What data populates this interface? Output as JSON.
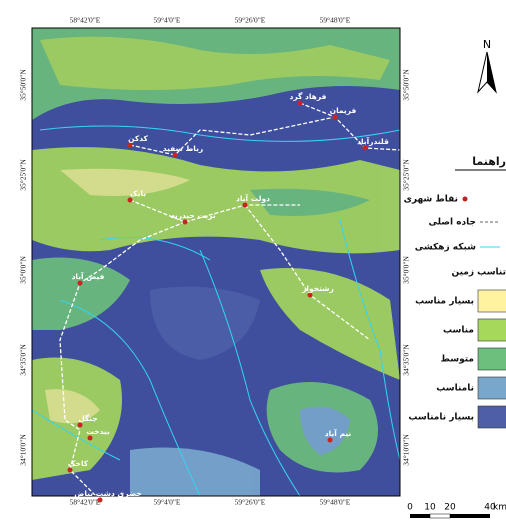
{
  "map": {
    "lon_labels": [
      "58°42'0\"E",
      "59°4'0\"E",
      "59°26'0\"E",
      "59°48'0\"E"
    ],
    "lat_labels": [
      "35°50'0\"N",
      "35°25'0\"N",
      "35°0'0\"N",
      "34°35'0\"N",
      "34°10'0\"N"
    ],
    "cities": [
      "فرهاد گرد",
      "فریمان",
      "قلندرآباد",
      "کدکن",
      "رباط سفید",
      "بایک",
      "تربت حیدریه",
      "دولت آباد",
      "رشتخوار",
      "فیض آباد",
      "جنگل",
      "بیدخت",
      "کاخک",
      "خضری دشت بیاض",
      "نیم آباد"
    ],
    "north": "N",
    "legend": {
      "title": "راهنما",
      "city_points": "نقاط شهری",
      "main_road": "جاده اصلی",
      "drainage": "شبکه زهکشی",
      "suitability_title": "تناسب زمین",
      "classes": [
        {
          "name": "بسیار مناسب",
          "color": "#fff3a0"
        },
        {
          "name": "مناسب",
          "color": "#a6d85c"
        },
        {
          "name": "متوسط",
          "color": "#6cbf7c"
        },
        {
          "name": "نامناسب",
          "color": "#79a7cc"
        },
        {
          "name": "بسیار نامناسب",
          "color": "#4e5fa8"
        }
      ]
    },
    "scale": [
      "0",
      "10",
      "20",
      "40",
      "km"
    ]
  }
}
